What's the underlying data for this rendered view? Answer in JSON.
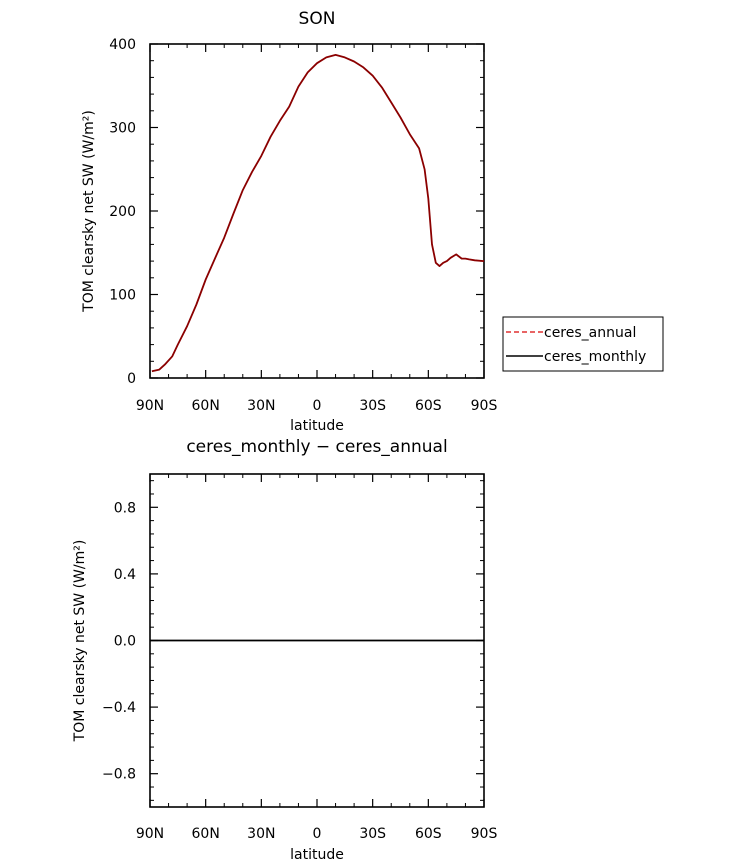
{
  "chart_data": [
    {
      "type": "line",
      "title": "SON",
      "xlabel": "latitude",
      "ylabel": "TOM clearsky net SW (W/m²)",
      "xlim": [
        90,
        -90
      ],
      "ylim": [
        0,
        400
      ],
      "xticks": [
        90,
        60,
        30,
        0,
        -30,
        -60,
        -90
      ],
      "xtick_labels": [
        "90N",
        "60N",
        "30N",
        "0",
        "30S",
        "60S",
        "90S"
      ],
      "yticks": [
        0,
        100,
        200,
        300,
        400
      ],
      "ytick_labels": [
        "0",
        "100",
        "200",
        "300",
        "400"
      ],
      "legend": {
        "placement": "right",
        "entries": [
          {
            "label": "ceres_annual",
            "color": "#e03030",
            "style": "dashed"
          },
          {
            "label": "ceres_monthly",
            "color": "#000000",
            "style": "solid"
          }
        ]
      },
      "series": [
        {
          "name": "ceres_monthly",
          "color": "#8b0000",
          "style": "solid",
          "x": [
            89,
            85,
            82,
            78,
            75,
            70,
            65,
            60,
            55,
            50,
            45,
            40,
            35,
            30,
            25,
            20,
            15,
            10,
            5,
            0,
            -5,
            -10,
            -15,
            -20,
            -25,
            -30,
            -35,
            -40,
            -45,
            -50,
            -55,
            -58,
            -60,
            -62,
            -64,
            -66,
            -68,
            -70,
            -72,
            -75,
            -78,
            -80,
            -82,
            -85,
            -90
          ],
          "values": [
            8,
            10,
            16,
            26,
            40,
            62,
            88,
            118,
            143,
            168,
            197,
            225,
            247,
            266,
            289,
            308,
            325,
            349,
            366,
            377,
            384,
            387,
            384,
            379,
            372,
            362,
            348,
            330,
            312,
            292,
            275,
            250,
            215,
            160,
            138,
            134,
            138,
            140,
            144,
            148,
            143,
            143,
            142,
            141,
            140
          ]
        }
      ]
    },
    {
      "type": "line",
      "title": "ceres_monthly − ceres_annual",
      "xlabel": "latitude",
      "ylabel": "TOM clearsky net SW (W/m²)",
      "xlim": [
        90,
        -90
      ],
      "ylim": [
        -1,
        1
      ],
      "xticks": [
        90,
        60,
        30,
        0,
        -30,
        -60,
        -90
      ],
      "xtick_labels": [
        "90N",
        "60N",
        "30N",
        "0",
        "30S",
        "60S",
        "90S"
      ],
      "yticks": [
        -0.8,
        -0.4,
        0.0,
        0.4,
        0.8
      ],
      "ytick_labels": [
        "−0.8",
        "−0.4",
        "0.0",
        "0.4",
        "0.8"
      ],
      "series": [
        {
          "color": "#000000",
          "style": "solid",
          "x": [
            90,
            -90
          ],
          "values": [
            0,
            0
          ]
        }
      ]
    }
  ]
}
